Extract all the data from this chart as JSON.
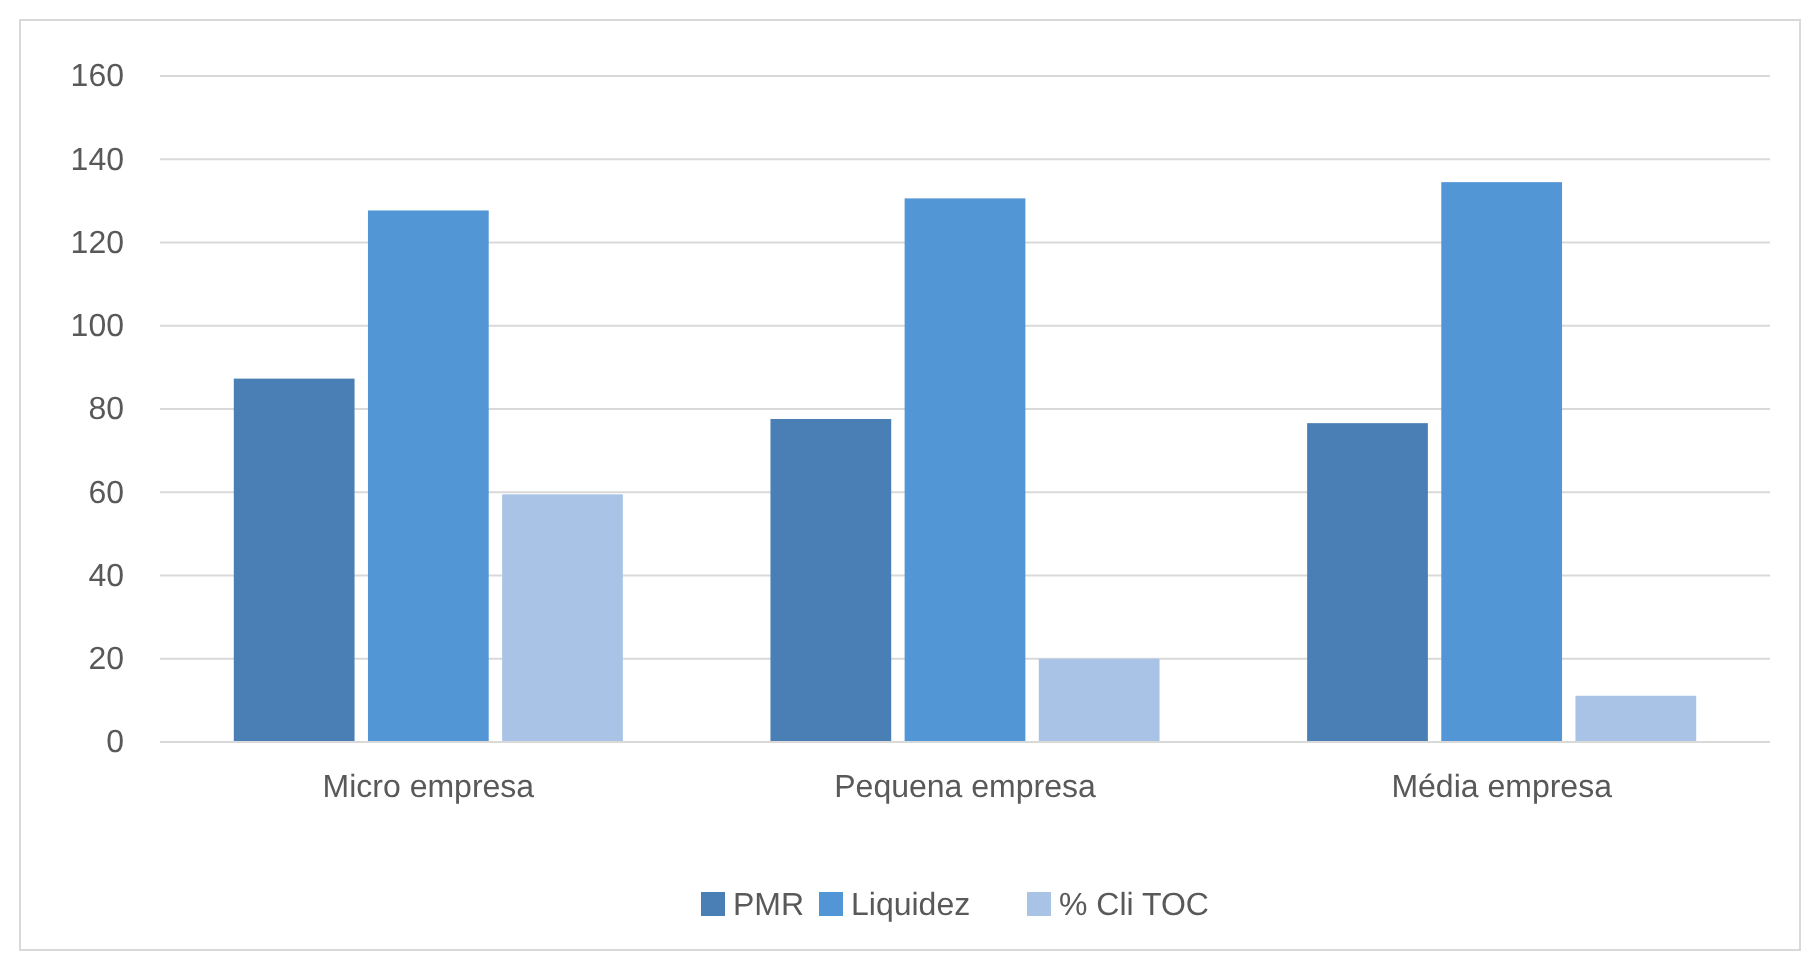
{
  "chart_data": {
    "type": "bar",
    "categories": [
      "Micro empresa",
      "Pequena empresa",
      "Média empresa"
    ],
    "series": [
      {
        "name": "PMR",
        "color": "#4a7fb5",
        "values": [
          87.3,
          77.6,
          76.6
        ]
      },
      {
        "name": "Liquidez",
        "color": "#5296d5",
        "values": [
          127.7,
          130.6,
          134.5
        ]
      },
      {
        "name": "% Cli TOC",
        "color": "#a9c3e6",
        "values": [
          59.5,
          20,
          11.1
        ]
      }
    ],
    "ylim": [
      0,
      160
    ],
    "yticks": [
      0,
      20,
      40,
      60,
      80,
      100,
      120,
      140,
      160
    ],
    "grid": "y",
    "legend": "bottom"
  }
}
